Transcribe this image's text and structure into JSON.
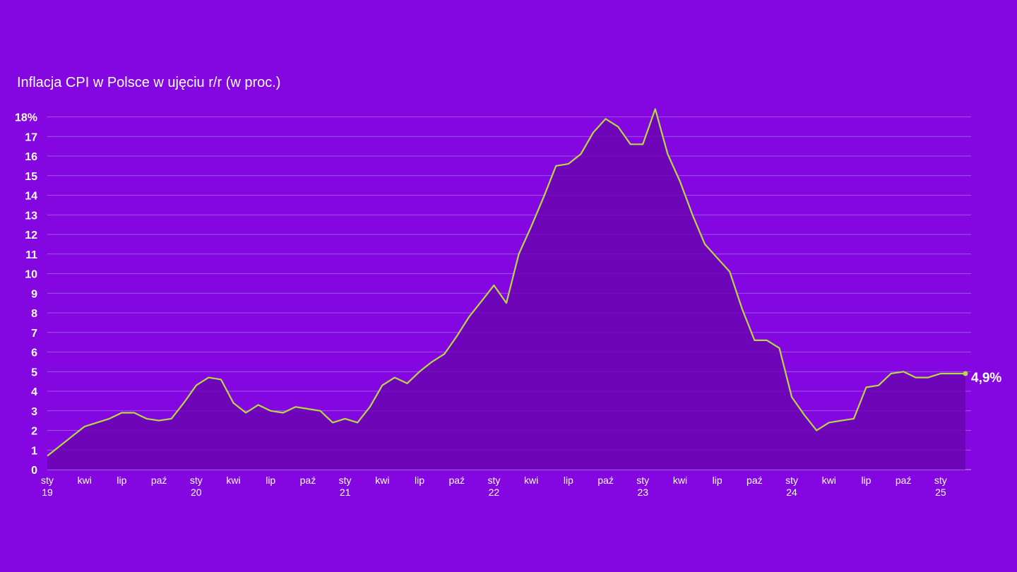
{
  "chart_data": {
    "type": "area",
    "title": "Inflacja CPI w Polsce w ujęciu r/r (w proc.)",
    "xlabel": "",
    "ylabel": "",
    "ylim": [
      0,
      18
    ],
    "y_ticks": [
      "0",
      "1",
      "2",
      "3",
      "4",
      "5",
      "6",
      "7",
      "8",
      "9",
      "10",
      "11",
      "12",
      "13",
      "14",
      "15",
      "16",
      "17",
      "18%"
    ],
    "x_ticks": [
      {
        "i": 0,
        "l1": "sty",
        "l2": "19"
      },
      {
        "i": 3,
        "l1": "kwi",
        "l2": ""
      },
      {
        "i": 6,
        "l1": "lip",
        "l2": ""
      },
      {
        "i": 9,
        "l1": "paź",
        "l2": ""
      },
      {
        "i": 12,
        "l1": "sty",
        "l2": "20"
      },
      {
        "i": 15,
        "l1": "kwi",
        "l2": ""
      },
      {
        "i": 18,
        "l1": "lip",
        "l2": ""
      },
      {
        "i": 21,
        "l1": "paź",
        "l2": ""
      },
      {
        "i": 24,
        "l1": "sty",
        "l2": "21"
      },
      {
        "i": 27,
        "l1": "kwi",
        "l2": ""
      },
      {
        "i": 30,
        "l1": "lip",
        "l2": ""
      },
      {
        "i": 33,
        "l1": "paź",
        "l2": ""
      },
      {
        "i": 36,
        "l1": "sty",
        "l2": "22"
      },
      {
        "i": 39,
        "l1": "kwi",
        "l2": ""
      },
      {
        "i": 42,
        "l1": "lip",
        "l2": ""
      },
      {
        "i": 45,
        "l1": "paź",
        "l2": ""
      },
      {
        "i": 48,
        "l1": "sty",
        "l2": "23"
      },
      {
        "i": 51,
        "l1": "kwi",
        "l2": ""
      },
      {
        "i": 54,
        "l1": "lip",
        "l2": ""
      },
      {
        "i": 57,
        "l1": "paź",
        "l2": ""
      },
      {
        "i": 60,
        "l1": "sty",
        "l2": "24"
      },
      {
        "i": 63,
        "l1": "kwi",
        "l2": ""
      },
      {
        "i": 66,
        "l1": "lip",
        "l2": ""
      },
      {
        "i": 69,
        "l1": "paź",
        "l2": ""
      },
      {
        "i": 72,
        "l1": "sty",
        "l2": "25"
      }
    ],
    "grid": true,
    "colors": {
      "background": "#8406e0",
      "line": "#b5d945",
      "area": "#6b06b0",
      "grid": "#b78df0"
    },
    "series": [
      {
        "name": "",
        "values": [
          0.7,
          1.2,
          1.7,
          2.2,
          2.4,
          2.6,
          2.9,
          2.9,
          2.6,
          2.5,
          2.6,
          3.4,
          4.3,
          4.7,
          4.6,
          3.4,
          2.9,
          3.3,
          3.0,
          2.9,
          3.2,
          3.1,
          3.0,
          2.4,
          2.6,
          2.4,
          3.2,
          4.3,
          4.7,
          4.4,
          5.0,
          5.5,
          5.9,
          6.8,
          7.8,
          8.6,
          9.4,
          8.5,
          11.0,
          12.4,
          13.9,
          15.5,
          15.6,
          16.1,
          17.2,
          17.9,
          17.5,
          16.6,
          16.6,
          18.4,
          16.1,
          14.7,
          13.0,
          11.5,
          10.8,
          10.1,
          8.2,
          6.6,
          6.6,
          6.2,
          3.7,
          2.8,
          2.0,
          2.4,
          2.5,
          2.6,
          4.2,
          4.3,
          4.9,
          5.0,
          4.7,
          4.7,
          4.9,
          4.9,
          4.9
        ]
      }
    ],
    "end_label": "4,9%"
  }
}
